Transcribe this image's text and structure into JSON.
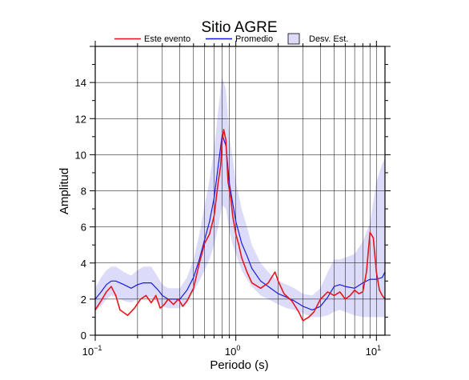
{
  "chart_data": {
    "type": "line",
    "title": "Sitio AGRE",
    "xlabel": "Periodo (s)",
    "ylabel": "Amplitud",
    "x_scale": "log",
    "xlim": [
      0.1,
      11.5
    ],
    "ylim": [
      0,
      16
    ],
    "x_ticks": [
      {
        "value": 0.1,
        "base": "10",
        "exp": "−1"
      },
      {
        "value": 1,
        "base": "10",
        "exp": "0"
      },
      {
        "value": 10,
        "base": "10",
        "exp": "1"
      }
    ],
    "y_ticks": [
      0,
      2,
      4,
      6,
      8,
      10,
      12,
      14
    ],
    "grid": true,
    "legend_position": "top",
    "legend": [
      {
        "label": "Este evento",
        "color": "#e8141e",
        "kind": "line"
      },
      {
        "label": "Promedio",
        "color": "#1a1ae6",
        "kind": "line"
      },
      {
        "label": "Desv. Est.",
        "color": "#dcdcfa",
        "kind": "box"
      }
    ],
    "series": [
      {
        "name": "Este evento",
        "color": "#e8141e",
        "x": [
          0.1,
          0.11,
          0.12,
          0.13,
          0.14,
          0.15,
          0.17,
          0.19,
          0.21,
          0.23,
          0.25,
          0.27,
          0.29,
          0.31,
          0.33,
          0.36,
          0.39,
          0.42,
          0.45,
          0.5,
          0.55,
          0.6,
          0.65,
          0.7,
          0.75,
          0.78,
          0.8,
          0.82,
          0.85,
          0.88,
          0.92,
          0.95,
          1.0,
          1.05,
          1.1,
          1.2,
          1.3,
          1.5,
          1.7,
          1.9,
          2.0,
          2.2,
          2.5,
          2.8,
          3.0,
          3.3,
          3.6,
          4.0,
          4.5,
          5.0,
          5.5,
          6.0,
          6.5,
          7.0,
          7.5,
          8.0,
          8.5,
          9.0,
          9.5,
          10.0,
          10.5,
          11.0,
          11.5
        ],
        "y": [
          1.4,
          1.9,
          2.4,
          2.7,
          2.2,
          1.4,
          1.1,
          1.5,
          2.0,
          2.2,
          1.8,
          2.2,
          1.5,
          1.7,
          2.0,
          1.7,
          2.0,
          1.6,
          1.9,
          2.6,
          4.0,
          5.1,
          5.6,
          6.6,
          8.5,
          9.4,
          10.8,
          11.4,
          10.8,
          8.5,
          7.6,
          6.6,
          5.6,
          5.0,
          4.3,
          3.5,
          2.9,
          2.6,
          2.9,
          3.5,
          3.0,
          2.3,
          1.9,
          1.3,
          0.8,
          1.0,
          1.3,
          2.0,
          2.4,
          2.2,
          2.4,
          2.0,
          2.2,
          2.5,
          2.3,
          2.4,
          3.5,
          5.7,
          5.4,
          3.5,
          2.5,
          2.2,
          2.0
        ]
      },
      {
        "name": "Promedio",
        "color": "#1a1ae6",
        "x": [
          0.1,
          0.11,
          0.12,
          0.13,
          0.14,
          0.16,
          0.18,
          0.2,
          0.22,
          0.25,
          0.28,
          0.3,
          0.33,
          0.36,
          0.4,
          0.45,
          0.5,
          0.55,
          0.6,
          0.65,
          0.7,
          0.75,
          0.8,
          0.85,
          0.9,
          0.95,
          1.0,
          1.1,
          1.2,
          1.3,
          1.5,
          1.7,
          2.0,
          2.3,
          2.6,
          3.0,
          3.5,
          4.0,
          4.5,
          5.0,
          5.5,
          6.0,
          7.0,
          8.0,
          9.0,
          10.0,
          11.0,
          11.5
        ],
        "y": [
          2.0,
          2.4,
          2.8,
          3.0,
          3.0,
          2.8,
          2.6,
          2.8,
          2.9,
          2.9,
          2.5,
          2.2,
          2.0,
          2.0,
          2.0,
          2.5,
          3.2,
          4.2,
          5.3,
          6.3,
          7.6,
          9.4,
          11.1,
          10.5,
          8.4,
          7.3,
          6.3,
          5.1,
          4.4,
          3.7,
          3.0,
          2.7,
          2.3,
          2.1,
          1.9,
          1.6,
          1.4,
          1.6,
          2.1,
          2.7,
          2.8,
          2.7,
          2.6,
          2.9,
          3.1,
          3.1,
          3.2,
          3.5
        ]
      },
      {
        "name": "Desv. Est.",
        "kind": "band",
        "color": "#dcdcfa",
        "x": [
          0.1,
          0.11,
          0.12,
          0.13,
          0.14,
          0.16,
          0.18,
          0.2,
          0.22,
          0.25,
          0.28,
          0.3,
          0.33,
          0.36,
          0.4,
          0.45,
          0.5,
          0.55,
          0.6,
          0.65,
          0.7,
          0.75,
          0.8,
          0.85,
          0.9,
          0.95,
          1.0,
          1.1,
          1.2,
          1.3,
          1.5,
          1.7,
          2.0,
          2.3,
          2.6,
          3.0,
          3.5,
          4.0,
          4.5,
          5.0,
          5.5,
          6.0,
          7.0,
          8.0,
          9.0,
          10.0,
          11.0,
          11.5
        ],
        "low": [
          1.4,
          1.6,
          2.0,
          2.2,
          2.1,
          1.9,
          1.8,
          2.0,
          2.1,
          2.1,
          1.8,
          1.6,
          1.5,
          1.5,
          1.5,
          1.8,
          2.4,
          3.0,
          3.6,
          4.2,
          5.0,
          6.0,
          7.2,
          7.0,
          5.8,
          5.0,
          4.5,
          3.6,
          3.1,
          2.7,
          2.2,
          2.0,
          1.7,
          1.5,
          1.4,
          1.2,
          1.0,
          1.0,
          1.1,
          1.3,
          1.4,
          1.3,
          1.1,
          1.0,
          1.0,
          1.0,
          1.0,
          1.0
        ],
        "high": [
          2.6,
          3.2,
          3.6,
          3.8,
          3.8,
          3.5,
          3.3,
          3.6,
          3.8,
          3.8,
          3.2,
          2.8,
          2.6,
          2.6,
          2.6,
          3.2,
          4.2,
          5.6,
          7.2,
          8.6,
          10.3,
          12.5,
          14.3,
          13.6,
          11.0,
          9.8,
          8.5,
          7.0,
          6.0,
          5.0,
          4.0,
          3.5,
          3.0,
          2.8,
          2.6,
          2.3,
          2.2,
          2.6,
          3.5,
          4.2,
          4.2,
          4.3,
          4.5,
          5.2,
          6.2,
          8.5,
          9.5,
          9.8
        ]
      }
    ]
  }
}
